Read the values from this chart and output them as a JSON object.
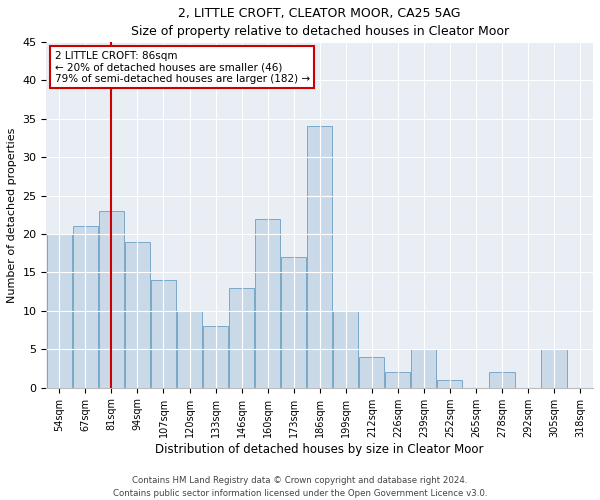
{
  "title": "2, LITTLE CROFT, CLEATOR MOOR, CA25 5AG",
  "subtitle": "Size of property relative to detached houses in Cleator Moor",
  "xlabel": "Distribution of detached houses by size in Cleator Moor",
  "ylabel": "Number of detached properties",
  "categories": [
    "54sqm",
    "67sqm",
    "81sqm",
    "94sqm",
    "107sqm",
    "120sqm",
    "133sqm",
    "146sqm",
    "160sqm",
    "173sqm",
    "186sqm",
    "199sqm",
    "212sqm",
    "226sqm",
    "239sqm",
    "252sqm",
    "265sqm",
    "278sqm",
    "292sqm",
    "305sqm",
    "318sqm"
  ],
  "values": [
    20,
    21,
    23,
    19,
    14,
    10,
    8,
    13,
    22,
    17,
    34,
    10,
    4,
    2,
    5,
    1,
    0,
    2,
    0,
    5,
    0
  ],
  "bar_color": "#c9d9e8",
  "bar_edge_color": "#7aa8c8",
  "background_color": "#e8eef4",
  "ylim": [
    0,
    45
  ],
  "yticks": [
    0,
    5,
    10,
    15,
    20,
    25,
    30,
    35,
    40,
    45
  ],
  "vline_x": 2,
  "vline_color": "#cc0000",
  "annotation_title": "2 LITTLE CROFT: 86sqm",
  "annotation_line1": "← 20% of detached houses are smaller (46)",
  "annotation_line2": "79% of semi-detached houses are larger (182) →",
  "annotation_box_color": "#ffffff",
  "annotation_box_edge": "#cc0000",
  "footnote1": "Contains HM Land Registry data © Crown copyright and database right 2024.",
  "footnote2": "Contains public sector information licensed under the Open Government Licence v3.0."
}
